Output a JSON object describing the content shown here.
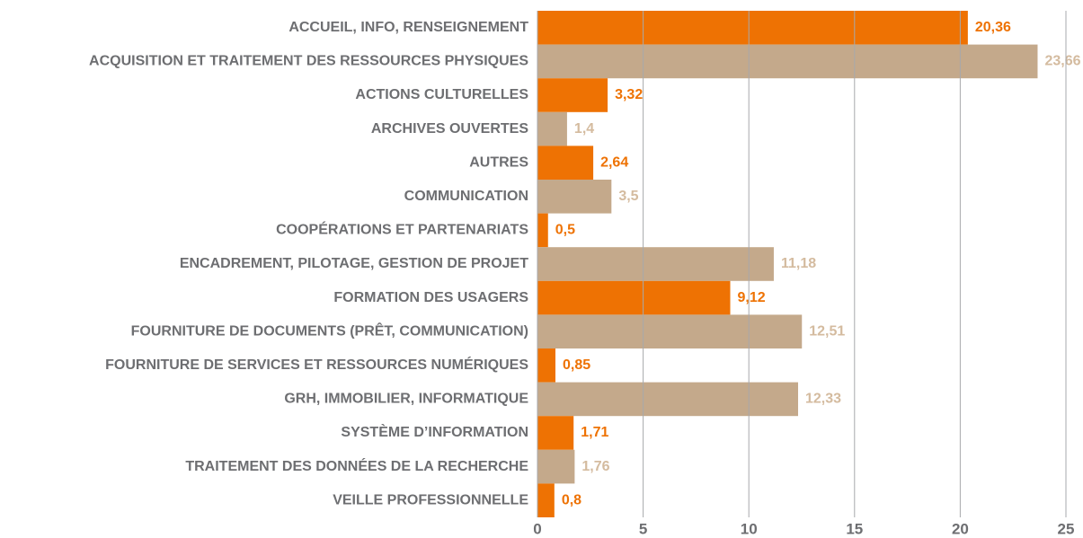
{
  "chart_data": {
    "type": "barh",
    "categories": [
      "ACCUEIL, INFO, RENSEIGNEMENT",
      "ACQUISITION ET TRAITEMENT DES RESSOURCES PHYSIQUES",
      "ACTIONS CULTURELLES",
      "ARCHIVES OUVERTES",
      "AUTRES",
      "COMMUNICATION",
      "COOPÉRATIONS ET PARTENARIATS",
      "ENCADREMENT, PILOTAGE, GESTION DE PROJET",
      "FORMATION DES USAGERS",
      "FOURNITURE DE DOCUMENTS (PRÊT, COMMUNICATION)",
      "FOURNITURE DE SERVICES ET RESSOURCES NUMÉRIQUES",
      "GRH, IMMOBILIER, INFORMATIQUE",
      "SYSTÈME D’INFORMATION",
      "TRAITEMENT DES DONNÉES DE LA RECHERCHE",
      "VEILLE PROFESSIONNELLE"
    ],
    "values": [
      20.36,
      23.66,
      3.32,
      1.4,
      2.64,
      3.5,
      0.5,
      11.18,
      9.12,
      12.51,
      0.85,
      12.33,
      1.71,
      1.76,
      0.8
    ],
    "value_labels": [
      "20,36",
      "23,66",
      "3,32",
      "1,4",
      "2,64",
      "3,5",
      "0,5",
      "11,18",
      "9,12",
      "12,51",
      "0,85",
      "12,33",
      "1,71",
      "1,76",
      "0,8"
    ],
    "colors": [
      "#ee7203",
      "#c4a98b"
    ],
    "xlim": [
      0,
      25
    ],
    "xticks": [
      0,
      5,
      10,
      15,
      20,
      25
    ],
    "grid": true
  }
}
